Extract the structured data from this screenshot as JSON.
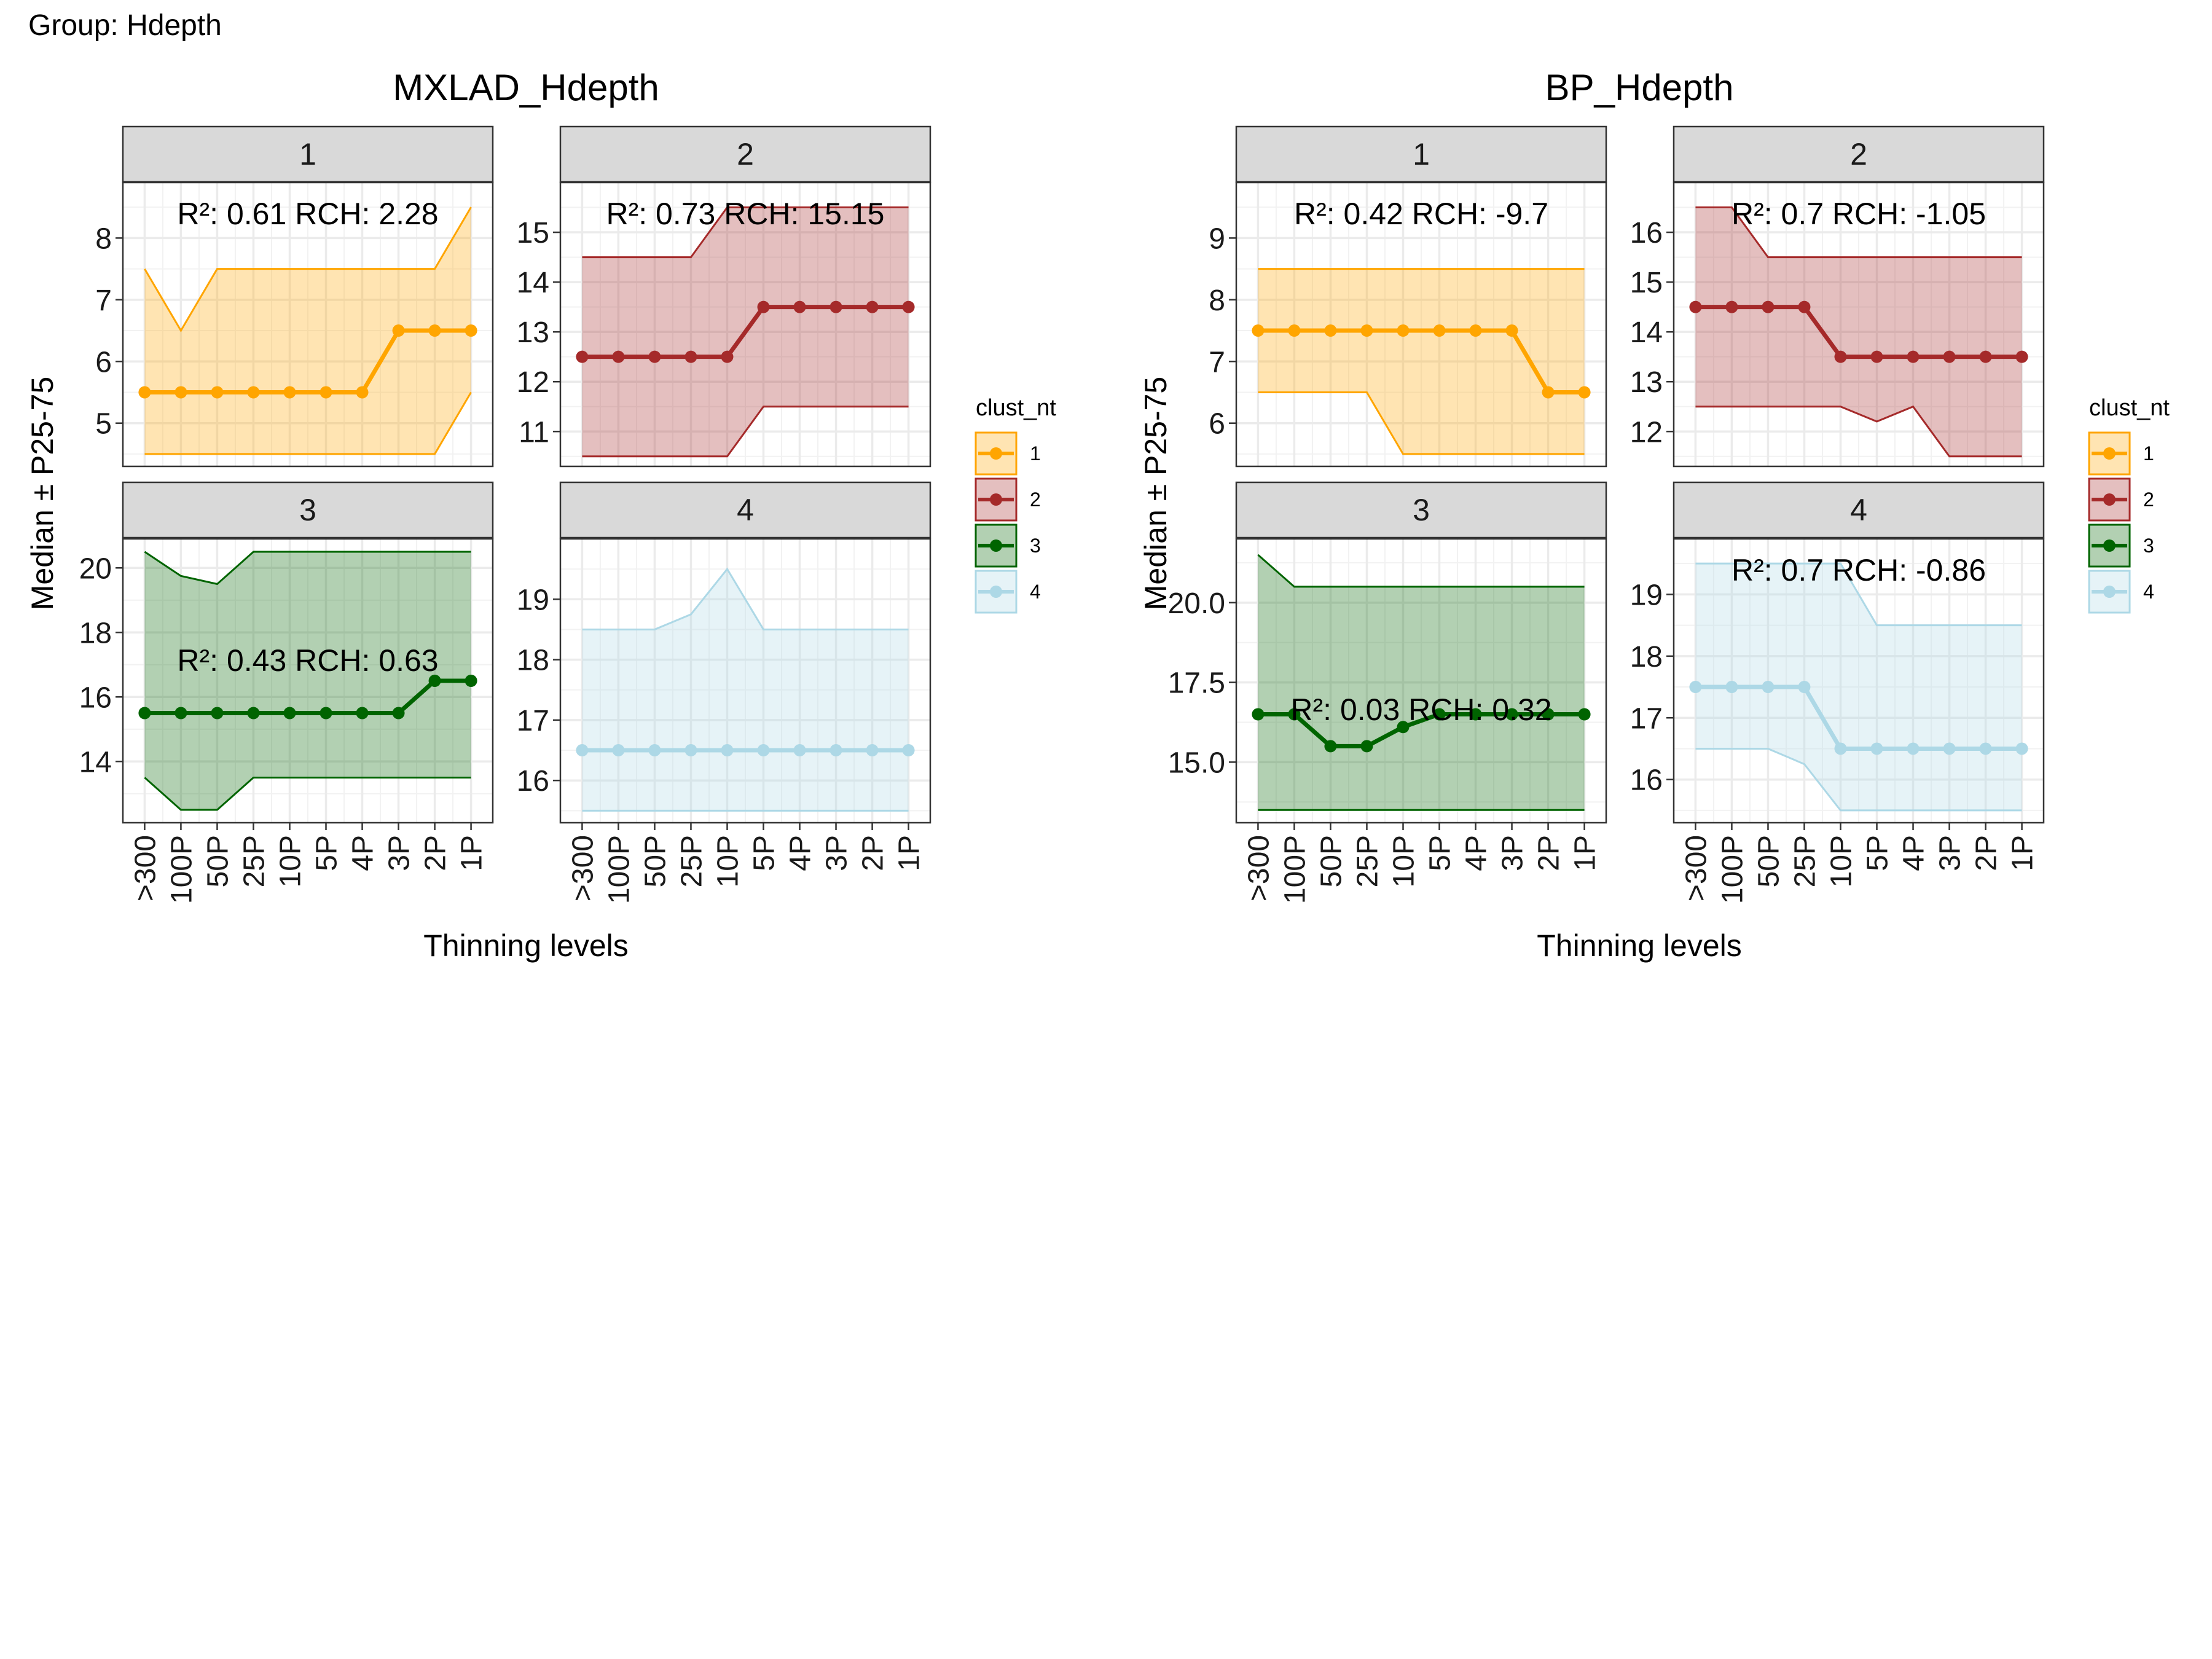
{
  "group_label": "Group: Hdepth",
  "legend_title": "clust_nt",
  "clusters": [
    {
      "id": "1",
      "color": "#FFA500",
      "fill": "#FFE4B5"
    },
    {
      "id": "2",
      "color": "#A52A2A",
      "fill": "#E0C0C0"
    },
    {
      "id": "3",
      "color": "#006400",
      "fill": "#B3D6B3"
    },
    {
      "id": "4",
      "color": "#ADD8E6",
      "fill": "#E6F3F9"
    }
  ],
  "chart_data": [
    {
      "type": "line",
      "title": "MXLAD_Hdepth",
      "xlabel": "Thinning levels",
      "ylabel": "Median ± P25-75",
      "categories": [
        ">300",
        "100P",
        "50P",
        "25P",
        "10P",
        "5P",
        "4P",
        "3P",
        "2P",
        "1P"
      ],
      "panels": [
        {
          "strip": "1",
          "annotation": "R²: 0.61 RCH: 2.28",
          "ylim": [
            4.3,
            8.9
          ],
          "yticks": [
            5,
            6,
            7,
            8
          ],
          "median": [
            5.5,
            5.5,
            5.5,
            5.5,
            5.5,
            5.5,
            5.5,
            6.5,
            6.5,
            6.5
          ],
          "p25": [
            4.5,
            4.5,
            4.5,
            4.5,
            4.5,
            4.5,
            4.5,
            4.5,
            4.5,
            5.5
          ],
          "p75": [
            7.5,
            6.5,
            7.5,
            7.5,
            7.5,
            7.5,
            7.5,
            7.5,
            7.5,
            8.5
          ]
        },
        {
          "strip": "2",
          "annotation": "R²: 0.73 RCH: 15.15",
          "ylim": [
            10.3,
            16.0
          ],
          "yticks": [
            11,
            12,
            13,
            14,
            15
          ],
          "median": [
            12.5,
            12.5,
            12.5,
            12.5,
            12.5,
            13.5,
            13.5,
            13.5,
            13.5,
            13.5
          ],
          "p25": [
            10.5,
            10.5,
            10.5,
            10.5,
            10.5,
            11.5,
            11.5,
            11.5,
            11.5,
            11.5
          ],
          "p75": [
            14.5,
            14.5,
            14.5,
            14.5,
            15.5,
            15.5,
            15.5,
            15.5,
            15.5,
            15.5
          ]
        },
        {
          "strip": "3",
          "annotation": "R²: 0.43 RCH: 0.63",
          "ylim": [
            12.1,
            20.9
          ],
          "yticks": [
            14,
            16,
            18,
            20
          ],
          "median": [
            15.5,
            15.5,
            15.5,
            15.5,
            15.5,
            15.5,
            15.5,
            15.5,
            16.5,
            16.5
          ],
          "p25": [
            13.5,
            12.5,
            12.5,
            13.5,
            13.5,
            13.5,
            13.5,
            13.5,
            13.5,
            13.5
          ],
          "p75": [
            20.5,
            19.75,
            19.5,
            20.5,
            20.5,
            20.5,
            20.5,
            20.5,
            20.5,
            20.5
          ]
        },
        {
          "strip": "4",
          "annotation": "",
          "ylim": [
            15.3,
            20.0
          ],
          "yticks": [
            16,
            17,
            18,
            19
          ],
          "median": [
            16.5,
            16.5,
            16.5,
            16.5,
            16.5,
            16.5,
            16.5,
            16.5,
            16.5,
            16.5
          ],
          "p25": [
            15.5,
            15.5,
            15.5,
            15.5,
            15.5,
            15.5,
            15.5,
            15.5,
            15.5,
            15.5
          ],
          "p75": [
            18.5,
            18.5,
            18.5,
            18.75,
            19.5,
            18.5,
            18.5,
            18.5,
            18.5,
            18.5
          ]
        }
      ]
    },
    {
      "type": "line",
      "title": "BP_Hdepth",
      "xlabel": "Thinning levels",
      "ylabel": "Median ± P25-75",
      "categories": [
        ">300",
        "100P",
        "50P",
        "25P",
        "10P",
        "5P",
        "4P",
        "3P",
        "2P",
        "1P"
      ],
      "panels": [
        {
          "strip": "1",
          "annotation": "R²: 0.42 RCH: -9.7",
          "ylim": [
            5.3,
            9.9
          ],
          "yticks": [
            6,
            7,
            8,
            9
          ],
          "median": [
            7.5,
            7.5,
            7.5,
            7.5,
            7.5,
            7.5,
            7.5,
            7.5,
            6.5,
            6.5
          ],
          "p25": [
            6.5,
            6.5,
            6.5,
            6.5,
            5.5,
            5.5,
            5.5,
            5.5,
            5.5,
            5.5
          ],
          "p75": [
            8.5,
            8.5,
            8.5,
            8.5,
            8.5,
            8.5,
            8.5,
            8.5,
            8.5,
            8.5
          ]
        },
        {
          "strip": "2",
          "annotation": "R²: 0.7 RCH: -1.05",
          "ylim": [
            11.3,
            17.0
          ],
          "yticks": [
            12,
            13,
            14,
            15,
            16
          ],
          "median": [
            14.5,
            14.5,
            14.5,
            14.5,
            13.5,
            13.5,
            13.5,
            13.5,
            13.5,
            13.5
          ],
          "p25": [
            12.5,
            12.5,
            12.5,
            12.5,
            12.5,
            12.2,
            12.5,
            11.5,
            11.5,
            11.5
          ],
          "p75": [
            16.5,
            16.5,
            15.5,
            15.5,
            15.5,
            15.5,
            15.5,
            15.5,
            15.5,
            15.5
          ]
        },
        {
          "strip": "3",
          "annotation": "R²: 0.03 RCH: 0.32",
          "ylim": [
            13.1,
            22.0
          ],
          "yticks": [
            15.0,
            17.5,
            20.0
          ],
          "ytick_labels": [
            "15.0",
            "17.5",
            "20.0"
          ],
          "median": [
            16.5,
            16.5,
            15.5,
            15.5,
            16.1,
            16.5,
            16.5,
            16.5,
            16.5,
            16.5
          ],
          "p25": [
            13.5,
            13.5,
            13.5,
            13.5,
            13.5,
            13.5,
            13.5,
            13.5,
            13.5,
            13.5
          ],
          "p75": [
            21.5,
            20.5,
            20.5,
            20.5,
            20.5,
            20.5,
            20.5,
            20.5,
            20.5,
            20.5
          ]
        },
        {
          "strip": "4",
          "annotation": "R²: 0.7 RCH: -0.86",
          "ylim": [
            15.3,
            19.9
          ],
          "yticks": [
            16,
            17,
            18,
            19
          ],
          "median": [
            17.5,
            17.5,
            17.5,
            17.5,
            16.5,
            16.5,
            16.5,
            16.5,
            16.5,
            16.5
          ],
          "p25": [
            16.5,
            16.5,
            16.5,
            16.25,
            15.5,
            15.5,
            15.5,
            15.5,
            15.5,
            15.5
          ],
          "p75": [
            19.5,
            19.5,
            19.5,
            19.5,
            19.5,
            18.5,
            18.5,
            18.5,
            18.5,
            18.5
          ]
        }
      ]
    }
  ]
}
